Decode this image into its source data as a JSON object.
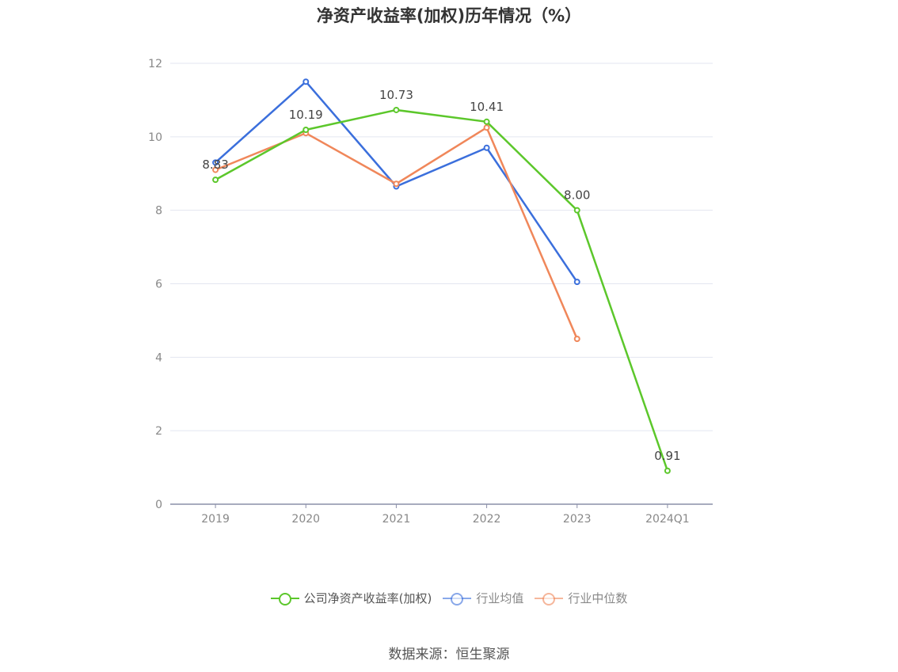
{
  "title": "净资产收益率(加权)历年情况（%）",
  "source": "数据来源：恒生聚源",
  "chart_data": {
    "type": "line",
    "title": "净资产收益率(加权)历年情况（%）",
    "xlabel": "",
    "ylabel": "",
    "categories": [
      "2019",
      "2020",
      "2021",
      "2022",
      "2023",
      "2024Q1"
    ],
    "ylim": [
      0,
      12
    ],
    "yticks": [
      "0",
      "2",
      "4",
      "6",
      "8",
      "10",
      "12"
    ],
    "grid": true,
    "legend_position": "bottom",
    "series": [
      {
        "name": "公司净资产收益率(加权)",
        "color": "#5cc72b",
        "values": [
          8.83,
          10.19,
          10.73,
          10.41,
          8.0,
          0.91
        ],
        "labels": [
          "8.83",
          "10.19",
          "10.73",
          "10.41",
          "8.00",
          "0.91"
        ]
      },
      {
        "name": "行业均值",
        "color": "#3b6fdc",
        "values": [
          9.3,
          11.5,
          8.65,
          9.7,
          6.05,
          null
        ]
      },
      {
        "name": "行业中位数",
        "color": "#f0875a",
        "values": [
          9.1,
          10.1,
          8.72,
          10.25,
          4.5,
          null
        ]
      }
    ]
  }
}
